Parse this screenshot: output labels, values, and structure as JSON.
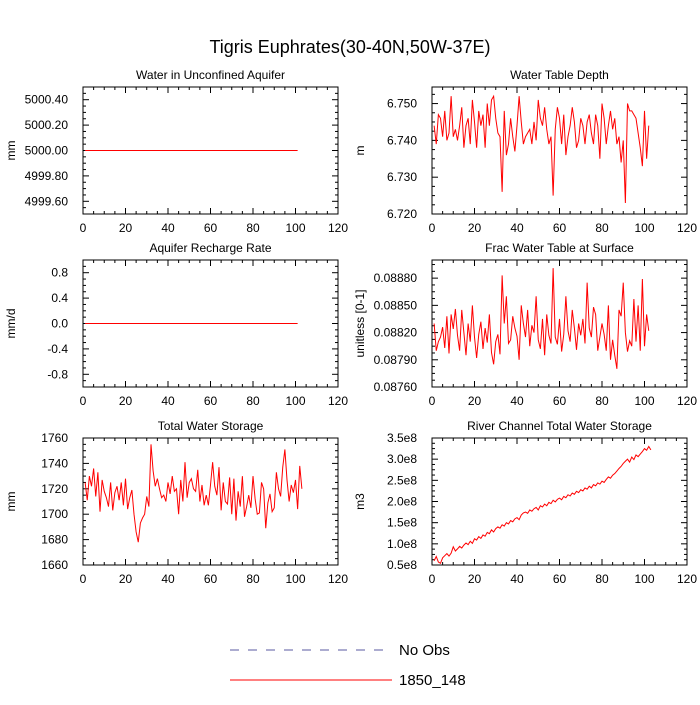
{
  "figure": {
    "title": "Tigris Euphrates(30-40N,50W-37E)",
    "line_color": "#ff0000",
    "obs_color": "#5a5aa0"
  },
  "legend": {
    "items": [
      {
        "label": "No Obs",
        "style": "dashed",
        "color": "#5a5aa0"
      },
      {
        "label": "1850_148",
        "style": "solid",
        "color": "#ff0000"
      }
    ]
  },
  "chart_data": [
    {
      "type": "line",
      "title": "Water in Unconfined Aquifer",
      "ylabel": "mm",
      "xlim": [
        0,
        120
      ],
      "ylim": [
        4999.5,
        5000.5
      ],
      "xticks": [
        0,
        20,
        40,
        60,
        80,
        100,
        120
      ],
      "xtick_labels": [
        "0",
        "20",
        "40",
        "60",
        "80",
        "100",
        "120"
      ],
      "yticks": [
        4999.6,
        4999.8,
        5000.0,
        5000.2,
        5000.4
      ],
      "ytick_labels": [
        "4999.60",
        "4999.80",
        "5000.00",
        "5000.20",
        "5000.40"
      ],
      "series": [
        {
          "x_start": 1,
          "x_step": 1,
          "values": [
            5000,
            5000,
            5000,
            5000,
            5000,
            5000,
            5000,
            5000,
            5000,
            5000,
            5000,
            5000,
            5000,
            5000,
            5000,
            5000,
            5000,
            5000,
            5000,
            5000,
            5000,
            5000,
            5000,
            5000,
            5000,
            5000,
            5000,
            5000,
            5000,
            5000,
            5000,
            5000,
            5000,
            5000,
            5000,
            5000,
            5000,
            5000,
            5000,
            5000,
            5000,
            5000,
            5000,
            5000,
            5000,
            5000,
            5000,
            5000,
            5000,
            5000,
            5000,
            5000,
            5000,
            5000,
            5000,
            5000,
            5000,
            5000,
            5000,
            5000,
            5000,
            5000,
            5000,
            5000,
            5000,
            5000,
            5000,
            5000,
            5000,
            5000,
            5000,
            5000,
            5000,
            5000,
            5000,
            5000,
            5000,
            5000,
            5000,
            5000,
            5000,
            5000,
            5000,
            5000,
            5000,
            5000,
            5000,
            5000,
            5000,
            5000,
            5000,
            5000,
            5000,
            5000,
            5000,
            5000,
            5000,
            5000,
            5000,
            5000,
            5000
          ]
        }
      ]
    },
    {
      "type": "line",
      "title": "Water Table Depth",
      "ylabel": "m",
      "xlim": [
        0,
        120
      ],
      "ylim": [
        6.72,
        6.7545
      ],
      "xticks": [
        0,
        20,
        40,
        60,
        80,
        100,
        120
      ],
      "xtick_labels": [
        "0",
        "20",
        "40",
        "60",
        "80",
        "100",
        "120"
      ],
      "yticks": [
        6.72,
        6.73,
        6.74,
        6.75
      ],
      "ytick_labels": [
        "6.720",
        "6.730",
        "6.740",
        "6.750"
      ],
      "series": [
        {
          "x_start": 1,
          "x_step": 1,
          "values": [
            6.744,
            6.739,
            6.747,
            6.746,
            6.741,
            6.748,
            6.74,
            6.742,
            6.752,
            6.741,
            6.743,
            6.74,
            6.744,
            6.749,
            6.738,
            6.744,
            6.746,
            6.739,
            6.751,
            6.745,
            6.738,
            6.748,
            6.744,
            6.747,
            6.738,
            6.75,
            6.744,
            6.751,
            6.752,
            6.746,
            6.742,
            6.741,
            6.726,
            6.748,
            6.736,
            6.739,
            6.746,
            6.741,
            6.737,
            6.744,
            6.752,
            6.745,
            6.739,
            6.741,
            6.742,
            6.743,
            6.739,
            6.745,
            6.74,
            6.751,
            6.746,
            6.744,
            6.749,
            6.743,
            6.739,
            6.741,
            6.725,
            6.743,
            6.749,
            6.746,
            6.739,
            6.747,
            6.736,
            6.741,
            6.744,
            6.749,
            6.745,
            6.738,
            6.74,
            6.746,
            6.744,
            6.739,
            6.745,
            6.747,
            6.742,
            6.739,
            6.747,
            6.744,
            6.735,
            6.75,
            6.746,
            6.739,
            6.744,
            6.748,
            6.743,
            6.746,
            6.739,
            6.741,
            6.734,
            6.74,
            6.723,
            6.75,
            6.748,
            6.748,
            6.747,
            6.746,
            6.742,
            6.738,
            6.733,
            6.748,
            6.735,
            6.744
          ]
        }
      ]
    },
    {
      "type": "line",
      "title": "Aquifer Recharge Rate",
      "ylabel": "mm/d",
      "xlim": [
        0,
        120
      ],
      "ylim": [
        -1,
        1
      ],
      "xticks": [
        0,
        20,
        40,
        60,
        80,
        100,
        120
      ],
      "xtick_labels": [
        "0",
        "20",
        "40",
        "60",
        "80",
        "100",
        "120"
      ],
      "yticks": [
        -0.8,
        -0.4,
        0,
        0.4,
        0.8
      ],
      "ytick_labels": [
        "-0.8",
        "-0.4",
        "0.0",
        "0.4",
        "0.8"
      ],
      "series": [
        {
          "x_start": 1,
          "x_step": 1,
          "values": [
            0,
            0,
            0,
            0,
            0,
            0,
            0,
            0,
            0,
            0,
            0,
            0,
            0,
            0,
            0,
            0,
            0,
            0,
            0,
            0,
            0,
            0,
            0,
            0,
            0,
            0,
            0,
            0,
            0,
            0,
            0,
            0,
            0,
            0,
            0,
            0,
            0,
            0,
            0,
            0,
            0,
            0,
            0,
            0,
            0,
            0,
            0,
            0,
            0,
            0,
            0,
            0,
            0,
            0,
            0,
            0,
            0,
            0,
            0,
            0,
            0,
            0,
            0,
            0,
            0,
            0,
            0,
            0,
            0,
            0,
            0,
            0,
            0,
            0,
            0,
            0,
            0,
            0,
            0,
            0,
            0,
            0,
            0,
            0,
            0,
            0,
            0,
            0,
            0,
            0,
            0,
            0,
            0,
            0,
            0,
            0,
            0,
            0,
            0,
            0,
            0
          ]
        }
      ]
    },
    {
      "type": "line",
      "title": "Frac Water Table at Surface",
      "ylabel": "unitless [0-1]",
      "xlim": [
        0,
        120
      ],
      "ylim": [
        0.0876,
        0.089
      ],
      "xticks": [
        0,
        20,
        40,
        60,
        80,
        100,
        120
      ],
      "xtick_labels": [
        "0",
        "20",
        "40",
        "60",
        "80",
        "100",
        "120"
      ],
      "yticks": [
        0.0876,
        0.0879,
        0.0882,
        0.0885,
        0.0888
      ],
      "ytick_labels": [
        "0.08760",
        "0.08790",
        "0.08820",
        "0.08850",
        "0.08880"
      ],
      "series": [
        {
          "x_start": 1,
          "x_step": 1,
          "values": [
            0.0883,
            0.088,
            0.0881,
            0.08815,
            0.08826,
            0.08803,
            0.08838,
            0.08797,
            0.0884,
            0.08824,
            0.08846,
            0.08817,
            0.088,
            0.08845,
            0.0882,
            0.08795,
            0.0883,
            0.0881,
            0.0885,
            0.08815,
            0.08792,
            0.08818,
            0.08832,
            0.08802,
            0.08825,
            0.08809,
            0.0884,
            0.08798,
            0.08785,
            0.0881,
            0.08818,
            0.08796,
            0.08883,
            0.0883,
            0.0886,
            0.08808,
            0.08812,
            0.08838,
            0.08825,
            0.08816,
            0.0879,
            0.0885,
            0.0883,
            0.08815,
            0.08845,
            0.08805,
            0.08828,
            0.0882,
            0.0886,
            0.08812,
            0.08802,
            0.08835,
            0.08795,
            0.0884,
            0.08817,
            0.08808,
            0.08891,
            0.08815,
            0.08807,
            0.08835,
            0.08799,
            0.08818,
            0.0886,
            0.08822,
            0.0881,
            0.08845,
            0.08825,
            0.08801,
            0.0883,
            0.08817,
            0.08835,
            0.08808,
            0.08875,
            0.08825,
            0.08815,
            0.08848,
            0.0884,
            0.088,
            0.08815,
            0.0883,
            0.08818,
            0.088,
            0.0885,
            0.0879,
            0.08812,
            0.08795,
            0.0878,
            0.08845,
            0.08838,
            0.08875,
            0.0882,
            0.08799,
            0.08811,
            0.08805,
            0.08857,
            0.0881,
            0.0885,
            0.088,
            0.08879,
            0.08805,
            0.0884,
            0.08822
          ]
        }
      ]
    },
    {
      "type": "line",
      "title": "Total Water Storage",
      "ylabel": "mm",
      "xlim": [
        0,
        120
      ],
      "ylim": [
        1660,
        1760
      ],
      "xticks": [
        0,
        20,
        40,
        60,
        80,
        100,
        120
      ],
      "xtick_labels": [
        "0",
        "20",
        "40",
        "60",
        "80",
        "100",
        "120"
      ],
      "yticks": [
        1660,
        1680,
        1700,
        1720,
        1740,
        1760
      ],
      "ytick_labels": [
        "1660",
        "1680",
        "1700",
        "1720",
        "1740",
        "1760"
      ],
      "series": [
        {
          "x_start": 1,
          "x_step": 1,
          "values": [
            1725,
            1711,
            1730,
            1722,
            1736,
            1714,
            1733,
            1702,
            1727,
            1718,
            1713,
            1706,
            1725,
            1703,
            1717,
            1722,
            1711,
            1725,
            1707,
            1728,
            1704,
            1713,
            1719,
            1700,
            1686,
            1678,
            1693,
            1697,
            1700,
            1714,
            1706,
            1755,
            1734,
            1722,
            1728,
            1720,
            1713,
            1715,
            1710,
            1725,
            1716,
            1730,
            1718,
            1720,
            1700,
            1727,
            1710,
            1741,
            1713,
            1725,
            1728,
            1720,
            1718,
            1735,
            1710,
            1723,
            1707,
            1715,
            1707,
            1723,
            1741,
            1722,
            1715,
            1737,
            1703,
            1725,
            1710,
            1708,
            1729,
            1700,
            1728,
            1695,
            1718,
            1706,
            1730,
            1698,
            1706,
            1715,
            1705,
            1730,
            1712,
            1700,
            1701,
            1725,
            1720,
            1689,
            1709,
            1716,
            1702,
            1705,
            1733,
            1720,
            1714,
            1737,
            1751,
            1727,
            1710,
            1723,
            1717,
            1727,
            1704,
            1738,
            1720
          ]
        }
      ]
    },
    {
      "type": "line",
      "title": "River Channel Total Water Storage",
      "ylabel": "m3",
      "xlim": [
        0,
        120
      ],
      "ylim": [
        50000000,
        350000000
      ],
      "xticks": [
        0,
        20,
        40,
        60,
        80,
        100,
        120
      ],
      "xtick_labels": [
        "0",
        "20",
        "40",
        "60",
        "80",
        "100",
        "120"
      ],
      "yticks": [
        50000000,
        100000000,
        150000000,
        200000000,
        250000000,
        300000000,
        350000000
      ],
      "ytick_labels": [
        "0.5e8",
        "1.0e8",
        "1.5e8",
        "2.0e8",
        "2.5e8",
        "3.0e8",
        "3.5e8"
      ],
      "series": [
        {
          "x_start": 1,
          "x_step": 1,
          "values": [
            60000000,
            70000000,
            57000000,
            54000000,
            67000000,
            72000000,
            77000000,
            71000000,
            78000000,
            93000000,
            83000000,
            88000000,
            94000000,
            90000000,
            97000000,
            102000000,
            98000000,
            106000000,
            101000000,
            112000000,
            109000000,
            117000000,
            113000000,
            121000000,
            118000000,
            127000000,
            124000000,
            133000000,
            128000000,
            136000000,
            140000000,
            137000000,
            145000000,
            142000000,
            150000000,
            147000000,
            155000000,
            152000000,
            159000000,
            162000000,
            157000000,
            168000000,
            173000000,
            175000000,
            172000000,
            180000000,
            177000000,
            183000000,
            186000000,
            180000000,
            190000000,
            187000000,
            194000000,
            190000000,
            198000000,
            195000000,
            203000000,
            199000000,
            205000000,
            208000000,
            204000000,
            212000000,
            209000000,
            216000000,
            213000000,
            220000000,
            217000000,
            224000000,
            221000000,
            228000000,
            225000000,
            232000000,
            229000000,
            236000000,
            232000000,
            240000000,
            237000000,
            244000000,
            241000000,
            248000000,
            245000000,
            252000000,
            258000000,
            255000000,
            262000000,
            266000000,
            272000000,
            278000000,
            283000000,
            290000000,
            295000000,
            300000000,
            293000000,
            305000000,
            299000000,
            310000000,
            306000000,
            312000000,
            318000000,
            325000000,
            321000000,
            330000000,
            322000000
          ]
        }
      ]
    }
  ]
}
